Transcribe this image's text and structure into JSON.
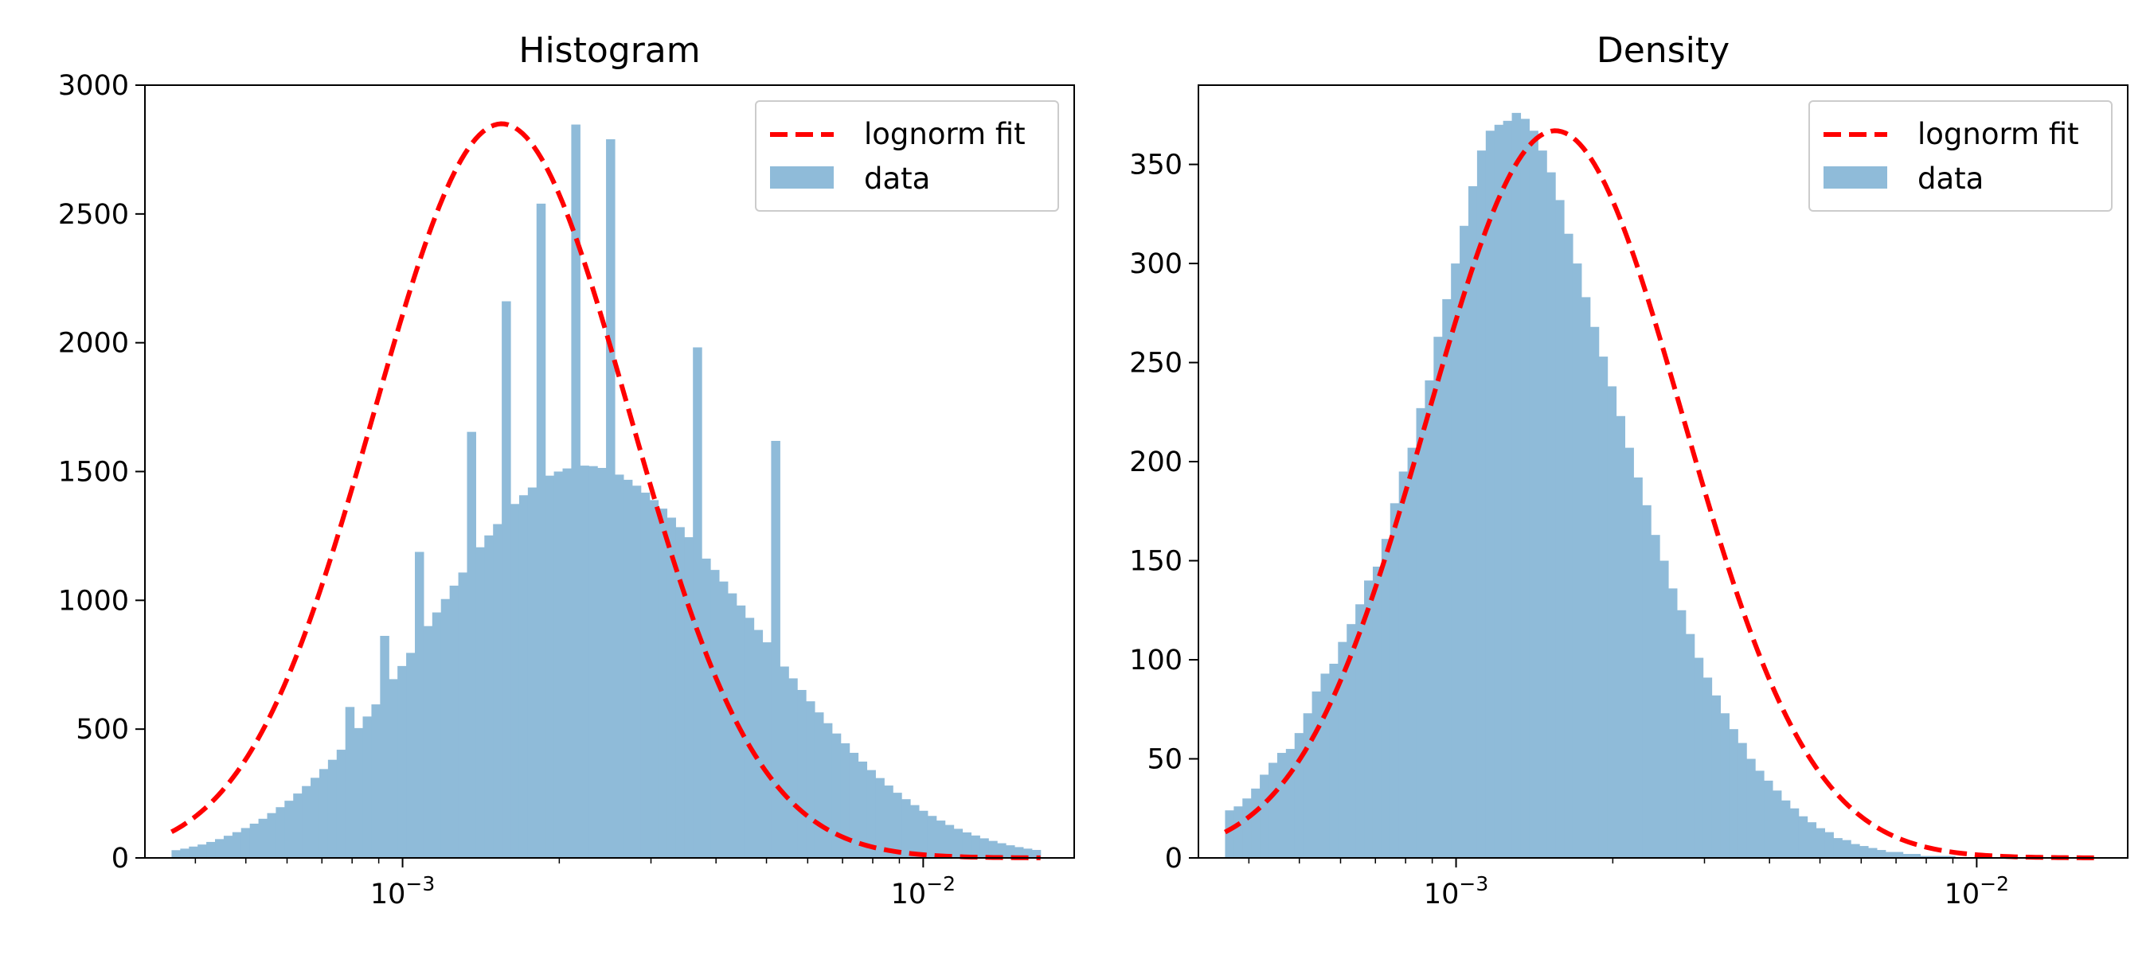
{
  "chart_data": [
    {
      "type": "bar",
      "title": "Histogram",
      "xscale": "log",
      "xlim": [
        0.00032,
        0.0195
      ],
      "ylim": [
        0,
        3000
      ],
      "yticks": [
        0,
        500,
        1000,
        1500,
        2000,
        2500,
        3000
      ],
      "xticks": [
        {
          "value": 0.001,
          "base": "10",
          "exp": "−3"
        },
        {
          "value": 0.01,
          "base": "10",
          "exp": "−2"
        }
      ],
      "grid": false,
      "legend_position": "top-right",
      "legend": [
        "lognorm fit",
        "data"
      ],
      "colors": {
        "data": "#8fbbd9",
        "fit": "#ff0000"
      },
      "series": [
        {
          "name": "data",
          "kind": "histogram",
          "bin_range": [
            0.00036,
            0.0168
          ],
          "bins": 100,
          "values": [
            30,
            36,
            44,
            52,
            62,
            73,
            86,
            100,
            116,
            133,
            152,
            174,
            197,
            222,
            250,
            279,
            311,
            345,
            381,
            420,
            586,
            504,
            549,
            596,
            862,
            694,
            745,
            796,
            1188,
            900,
            953,
            1005,
            1057,
            1108,
            1654,
            1206,
            1252,
            1296,
            2161,
            1374,
            1408,
            1438,
            2540,
            1484,
            1500,
            1512,
            2847,
            1523,
            1521,
            1514,
            2790,
            1488,
            1468,
            1445,
            1418,
            1389,
            1356,
            1321,
            1284,
            1245,
            1982,
            1162,
            1118,
            1073,
            1027,
            980,
            932,
            885,
            837,
            1619,
            743,
            697,
            652,
            608,
            565,
            523,
            483,
            445,
            408,
            374,
            341,
            310,
            281,
            253,
            228,
            205,
            183,
            163,
            145,
            128,
            113,
            99,
            87,
            76,
            66,
            57,
            49,
            42,
            36,
            31
          ]
        },
        {
          "name": "lognorm fit",
          "kind": "curve",
          "style": "dashed",
          "mu": -6.15,
          "sigma": 0.565,
          "peak": 2850,
          "x_range": [
            0.00036,
            0.0168
          ]
        }
      ]
    },
    {
      "type": "bar",
      "title": "Density",
      "xscale": "log",
      "xlim": [
        0.00032,
        0.0195
      ],
      "ylim": [
        0,
        390
      ],
      "yticks": [
        0,
        50,
        100,
        150,
        200,
        250,
        300,
        350
      ],
      "xticks": [
        {
          "value": 0.001,
          "base": "10",
          "exp": "−3"
        },
        {
          "value": 0.01,
          "base": "10",
          "exp": "−2"
        }
      ],
      "grid": false,
      "legend_position": "top-right",
      "legend": [
        "lognorm fit",
        "data"
      ],
      "colors": {
        "data": "#8fbbd9",
        "fit": "#ff0000"
      },
      "series": [
        {
          "name": "data",
          "kind": "histogram",
          "bin_range": [
            0.00036,
            0.0168
          ],
          "bins": 100,
          "values": [
            24,
            26,
            30,
            35,
            42,
            48,
            53,
            55,
            63,
            73,
            84,
            93,
            98,
            109,
            118,
            128,
            140,
            147,
            161,
            179,
            195,
            207,
            227,
            241,
            263,
            282,
            300,
            319,
            339,
            357,
            367,
            370,
            372,
            376,
            373,
            367,
            357,
            346,
            332,
            315,
            300,
            283,
            268,
            253,
            238,
            223,
            207,
            192,
            178,
            163,
            150,
            136,
            125,
            113,
            101,
            91,
            82,
            73,
            65,
            58,
            50,
            44,
            39,
            34,
            29,
            25,
            21,
            18,
            15,
            13,
            10,
            9,
            7,
            6,
            5,
            4,
            3,
            3,
            2,
            2,
            1,
            1,
            1,
            1,
            0,
            0,
            0,
            0,
            0,
            0,
            0,
            0,
            0,
            0,
            0,
            0,
            0,
            0,
            0,
            0
          ]
        },
        {
          "name": "lognorm fit",
          "kind": "curve",
          "style": "dashed",
          "mu": -6.15,
          "sigma": 0.565,
          "peak": 367,
          "x_range": [
            0.00036,
            0.0168
          ]
        }
      ]
    }
  ]
}
